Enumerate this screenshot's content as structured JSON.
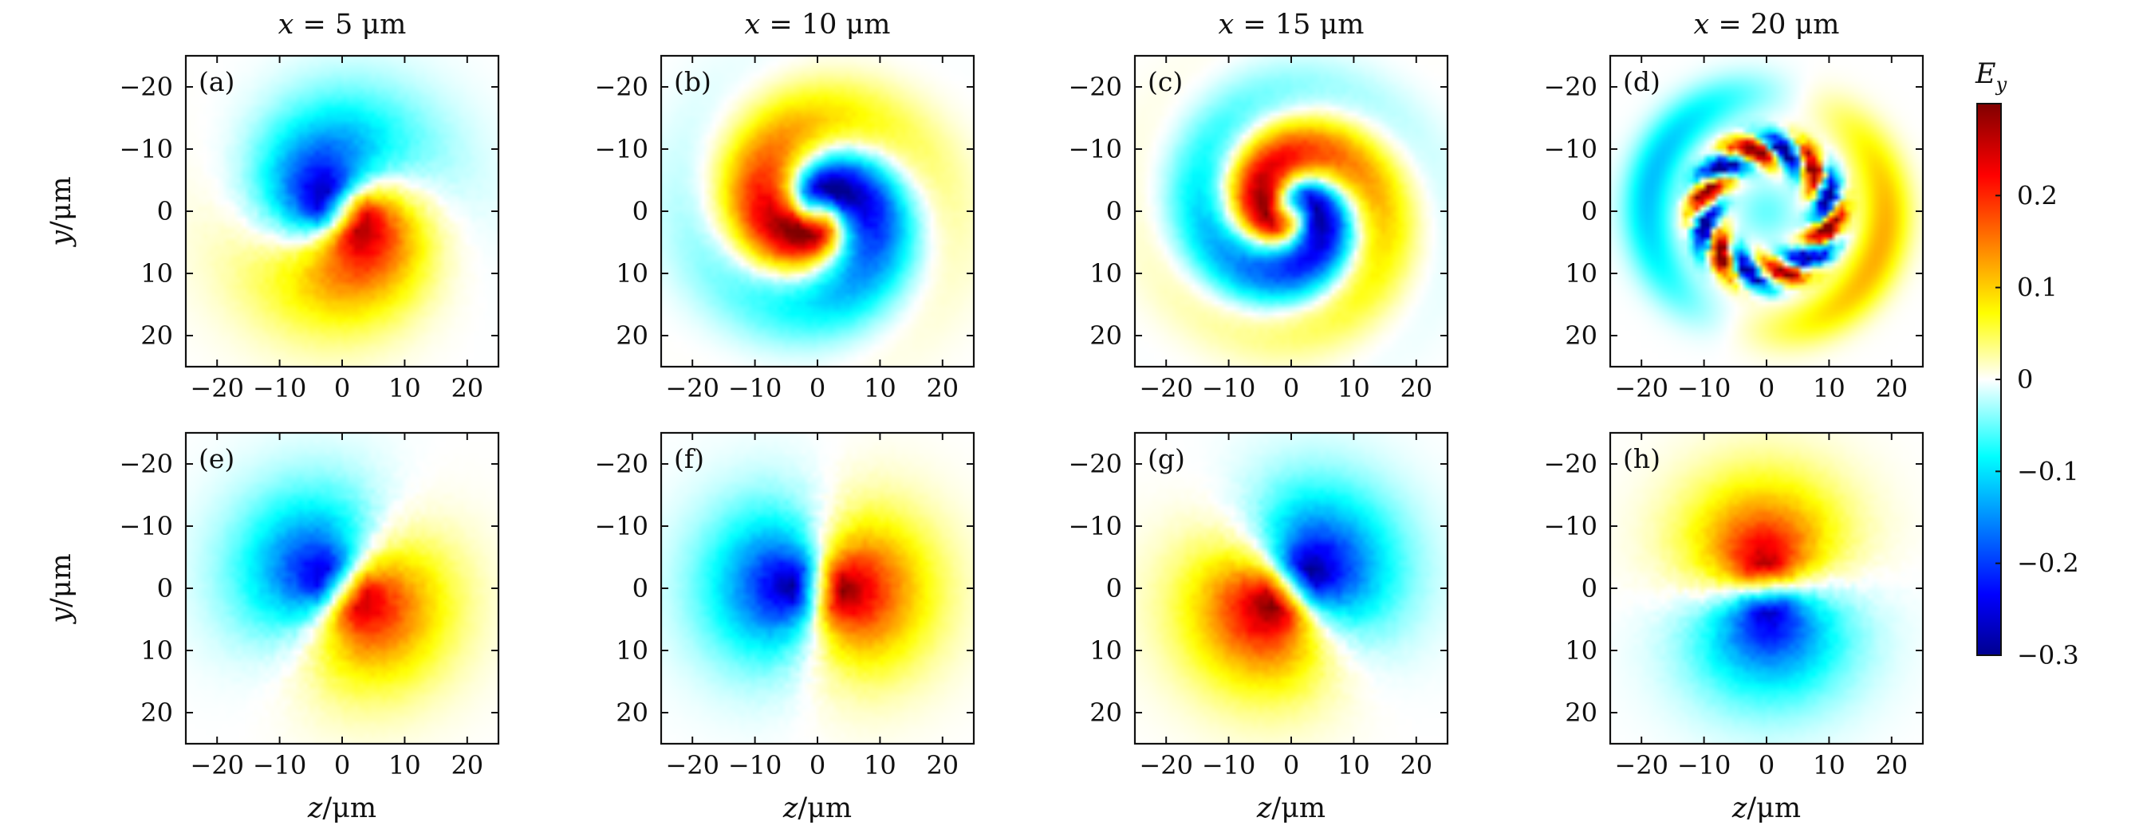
{
  "chart_data": {
    "type": "heatmap",
    "columns": [
      {
        "x_prefix": "x",
        "x_value": "= 5 μm"
      },
      {
        "x_prefix": "x",
        "x_value": "= 10 μm"
      },
      {
        "x_prefix": "x",
        "x_value": "= 15 μm"
      },
      {
        "x_prefix": "x",
        "x_value": "= 20 μm"
      }
    ],
    "xlabel": {
      "var": "z",
      "unit": "/μm"
    },
    "ylabel": {
      "var": "y",
      "unit": "/μm"
    },
    "xlim": [
      -25,
      25
    ],
    "ylim": [
      -25,
      25
    ],
    "y_reversed": true,
    "xticks": [
      -20,
      -10,
      0,
      10,
      20
    ],
    "yticks": [
      -20,
      -10,
      0,
      10,
      20
    ],
    "xtick_labels": [
      "−20",
      "−10",
      "0",
      "10",
      "20"
    ],
    "ytick_labels": [
      "−20",
      "−10",
      "0",
      "10",
      "20"
    ],
    "colorbar": {
      "label_var": "E",
      "label_sub": "y",
      "range": [
        -0.3,
        0.3
      ],
      "ticks": [
        -0.3,
        -0.2,
        -0.1,
        0,
        0.1,
        0.2
      ],
      "tick_labels": [
        "−0.3",
        "−0.2",
        "−0.1",
        "0",
        "0.1",
        "0.2"
      ],
      "colormap": "jet"
    },
    "panels": [
      {
        "label": "(a)",
        "row": 0,
        "col": 0,
        "kind": "dipole",
        "angle_deg": 25,
        "twist": 0.9,
        "amp": 0.26
      },
      {
        "label": "(b)",
        "row": 0,
        "col": 1,
        "kind": "dipole",
        "angle_deg": 80,
        "twist": 2.6,
        "amp": 0.3
      },
      {
        "label": "(c)",
        "row": 0,
        "col": 2,
        "kind": "dipole",
        "angle_deg": 120,
        "twist": 3.6,
        "amp": 0.28
      },
      {
        "label": "(d)",
        "row": 0,
        "col": 3,
        "kind": "ring",
        "angle_deg": 0,
        "twist": 0,
        "amp": 0.3
      },
      {
        "label": "(e)",
        "row": 1,
        "col": 0,
        "kind": "dipole",
        "angle_deg": 35,
        "twist": 0.0,
        "amp": 0.24
      },
      {
        "label": "(f)",
        "row": 1,
        "col": 1,
        "kind": "dipole",
        "angle_deg": 5,
        "twist": 0.0,
        "amp": 0.27
      },
      {
        "label": "(g)",
        "row": 1,
        "col": 2,
        "kind": "dipole",
        "angle_deg": 140,
        "twist": 0.0,
        "amp": 0.28
      },
      {
        "label": "(h)",
        "row": 1,
        "col": 3,
        "kind": "dipole",
        "angle_deg": 265,
        "twist": 0.0,
        "amp": 0.25
      }
    ]
  }
}
